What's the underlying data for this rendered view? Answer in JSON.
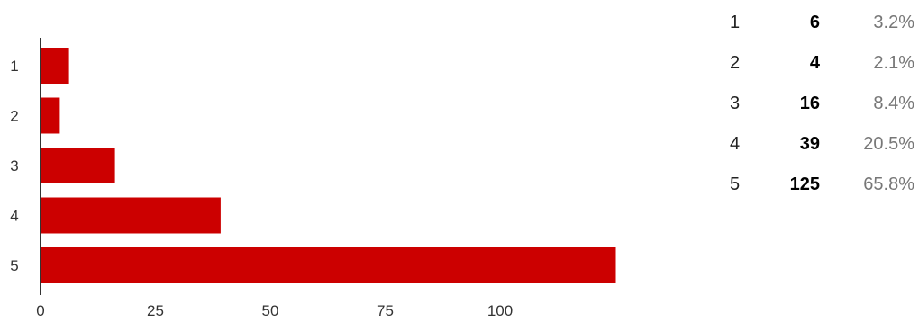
{
  "chart_data": {
    "type": "bar",
    "orientation": "horizontal",
    "categories": [
      "1",
      "2",
      "3",
      "4",
      "5"
    ],
    "values": [
      6,
      4,
      16,
      39,
      125
    ],
    "percentages": [
      "3.2%",
      "2.1%",
      "8.4%",
      "20.5%",
      "65.8%"
    ],
    "x_ticks": [
      "0",
      "25",
      "50",
      "75",
      "100"
    ],
    "xlim": [
      0,
      125
    ],
    "bar_color": "#cc0000",
    "grid": false,
    "legend": "none"
  },
  "summary": {
    "rows": [
      {
        "category": "1",
        "count": "6",
        "percent": "3.2%"
      },
      {
        "category": "2",
        "count": "4",
        "percent": "2.1%"
      },
      {
        "category": "3",
        "count": "16",
        "percent": "8.4%"
      },
      {
        "category": "4",
        "count": "39",
        "percent": "20.5%"
      },
      {
        "category": "5",
        "count": "125",
        "percent": "65.8%"
      }
    ]
  }
}
